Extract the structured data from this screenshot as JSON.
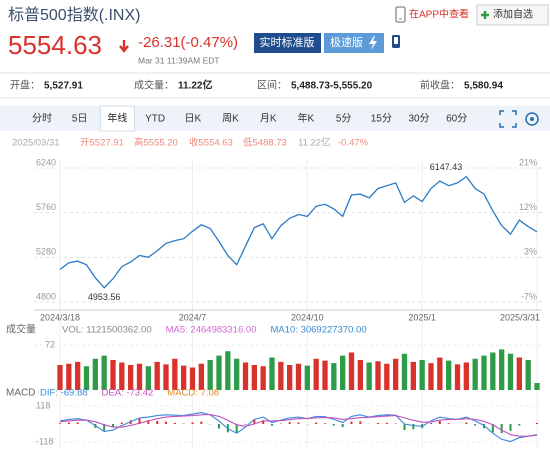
{
  "header": {
    "title": "标普500指数(.INX)",
    "app_link": "在APP中查看",
    "add_button": "添加自选",
    "price": "5554.63",
    "change": "-26.31(-0.47%)",
    "buttons": [
      "实时标准版",
      "极速版"
    ],
    "time": "Mar 31 11:39AM EDT"
  },
  "stats": [
    {
      "label": "开盘：",
      "value": "5,527.91"
    },
    {
      "label": "成交量：",
      "value": "11.22亿"
    },
    {
      "label": "区间：",
      "value": "5,488.73-5,555.20"
    },
    {
      "label": "前收盘：",
      "value": "5,580.94"
    }
  ],
  "tabs": [
    {
      "label": "分时"
    },
    {
      "label": "5日"
    },
    {
      "label": "年线",
      "selected": true
    },
    {
      "label": "YTD"
    },
    {
      "label": "日K"
    },
    {
      "label": "周K"
    },
    {
      "label": "月K"
    },
    {
      "label": "年K"
    },
    {
      "label": "5分"
    },
    {
      "label": "15分"
    },
    {
      "label": "30分"
    },
    {
      "label": "60分"
    }
  ],
  "info_line": [
    "2025/03/31",
    "开5527.91",
    "高5555.20",
    "收5554.63",
    "低5488.73",
    "11.22亿",
    "-0.47%"
  ],
  "chart_data": [
    {
      "type": "line",
      "color": "#2b7bc6",
      "grid": true,
      "categories": [
        "2024/3/18",
        null,
        null,
        null,
        null,
        null,
        null,
        null,
        null,
        null,
        null,
        null,
        null,
        null,
        null,
        "2024/7",
        null,
        null,
        null,
        null,
        null,
        null,
        null,
        null,
        null,
        null,
        null,
        null,
        "2024/10",
        null,
        null,
        null,
        null,
        null,
        null,
        null,
        null,
        null,
        null,
        null,
        null,
        "2025/1",
        null,
        null,
        null,
        null,
        null,
        null,
        null,
        null,
        null,
        null,
        null,
        null,
        "2025/3/31"
      ],
      "values": [
        5150,
        5220,
        5240,
        5200,
        5060,
        4953.56,
        5050,
        5180,
        5230,
        5300,
        5280,
        5350,
        5430,
        5460,
        5480,
        5560,
        5630,
        5590,
        5450,
        5300,
        5200,
        5400,
        5600,
        5640,
        5480,
        5620,
        5700,
        5740,
        5720,
        5830,
        5850,
        5800,
        5720,
        5950,
        5960,
        5920,
        6020,
        6050,
        6080,
        5870,
        5940,
        5880,
        6020,
        6100,
        6050,
        6080,
        6147.43,
        6020,
        5960,
        5780,
        5620,
        5530,
        5680,
        5610,
        5554.63
      ],
      "ylim": [
        4800,
        6240
      ],
      "yticks": [
        6240,
        5760,
        5280,
        4800
      ],
      "y2lim": [
        -6.8,
        21.17
      ],
      "y2ticks": [
        {
          "value": 21.17,
          "label": "21%"
        },
        {
          "value": 11.84,
          "label": "12%"
        },
        {
          "value": 2.52,
          "label": "3%"
        },
        {
          "value": -6.8,
          "label": "-7%"
        }
      ]
    },
    {
      "type": "bar",
      "title": "成交量",
      "up_color": "#d9312b",
      "down_color": "#2e9b48",
      "series": [
        {
          "name": "VOL: 1121500362.00",
          "color": "#888888",
          "values": [
            40,
            42,
            45,
            38,
            50,
            55,
            48,
            44,
            40,
            42,
            38,
            45,
            41,
            50,
            39,
            36,
            42,
            48,
            55,
            62,
            50,
            44,
            40,
            38,
            52,
            45,
            40,
            42,
            39,
            50,
            47,
            43,
            55,
            60,
            48,
            44,
            46,
            42,
            50,
            58,
            45,
            48,
            43,
            52,
            47,
            41,
            44,
            50,
            55,
            60,
            65,
            58,
            52,
            48,
            11.22
          ]
        }
      ],
      "legend": [
        {
          "name": "MA5: 2464983316.00",
          "color": "#d06ad0"
        },
        {
          "name": "MA10: 3069227370.00",
          "color": "#3a8ad6"
        }
      ],
      "ylim": [
        0,
        80
      ],
      "yticks": [
        72
      ]
    },
    {
      "type": "macd",
      "title": "MACD",
      "up_color": "#d9312b",
      "down_color": "#2e9b48",
      "series": [
        {
          "name": "DIF: -69.88",
          "color": "#3a8ad6",
          "values": [
            20,
            30,
            35,
            25,
            -10,
            -50,
            -40,
            -10,
            15,
            40,
            45,
            55,
            60,
            58,
            55,
            65,
            75,
            60,
            20,
            -30,
            -60,
            -20,
            30,
            45,
            10,
            25,
            40,
            45,
            35,
            50,
            48,
            30,
            10,
            50,
            60,
            45,
            55,
            60,
            58,
            0,
            -10,
            -15,
            20,
            45,
            35,
            30,
            45,
            20,
            -10,
            -60,
            -100,
            -115,
            -90,
            -80,
            -69.88
          ]
        },
        {
          "name": "DEA: -73.42",
          "color": "#c050c0",
          "values": [
            15,
            20,
            25,
            25,
            15,
            -5,
            -20,
            -20,
            -10,
            5,
            20,
            35,
            45,
            50,
            52,
            55,
            60,
            62,
            50,
            25,
            -5,
            -15,
            0,
            20,
            20,
            22,
            28,
            35,
            37,
            40,
            43,
            40,
            30,
            35,
            42,
            44,
            48,
            52,
            55,
            40,
            25,
            12,
            14,
            25,
            30,
            30,
            35,
            30,
            18,
            -5,
            -40,
            -70,
            -80,
            -80,
            -73.42
          ]
        }
      ],
      "histogram": {
        "name": "MACD: 7.08",
        "color": "#e08a2a",
        "values": [
          5,
          10,
          10,
          0,
          -25,
          -45,
          -20,
          10,
          25,
          35,
          25,
          20,
          15,
          8,
          3,
          10,
          15,
          -2,
          -30,
          -55,
          -55,
          -5,
          30,
          25,
          -10,
          3,
          12,
          10,
          -2,
          10,
          5,
          -10,
          -20,
          15,
          18,
          1,
          7,
          8,
          3,
          -40,
          -35,
          -27,
          6,
          20,
          5,
          0,
          10,
          -10,
          -28,
          -55,
          -60,
          -45,
          -10,
          0,
          7.08
        ]
      },
      "ylim": [
        -118,
        118
      ],
      "yticks": [
        118,
        -118
      ]
    }
  ]
}
